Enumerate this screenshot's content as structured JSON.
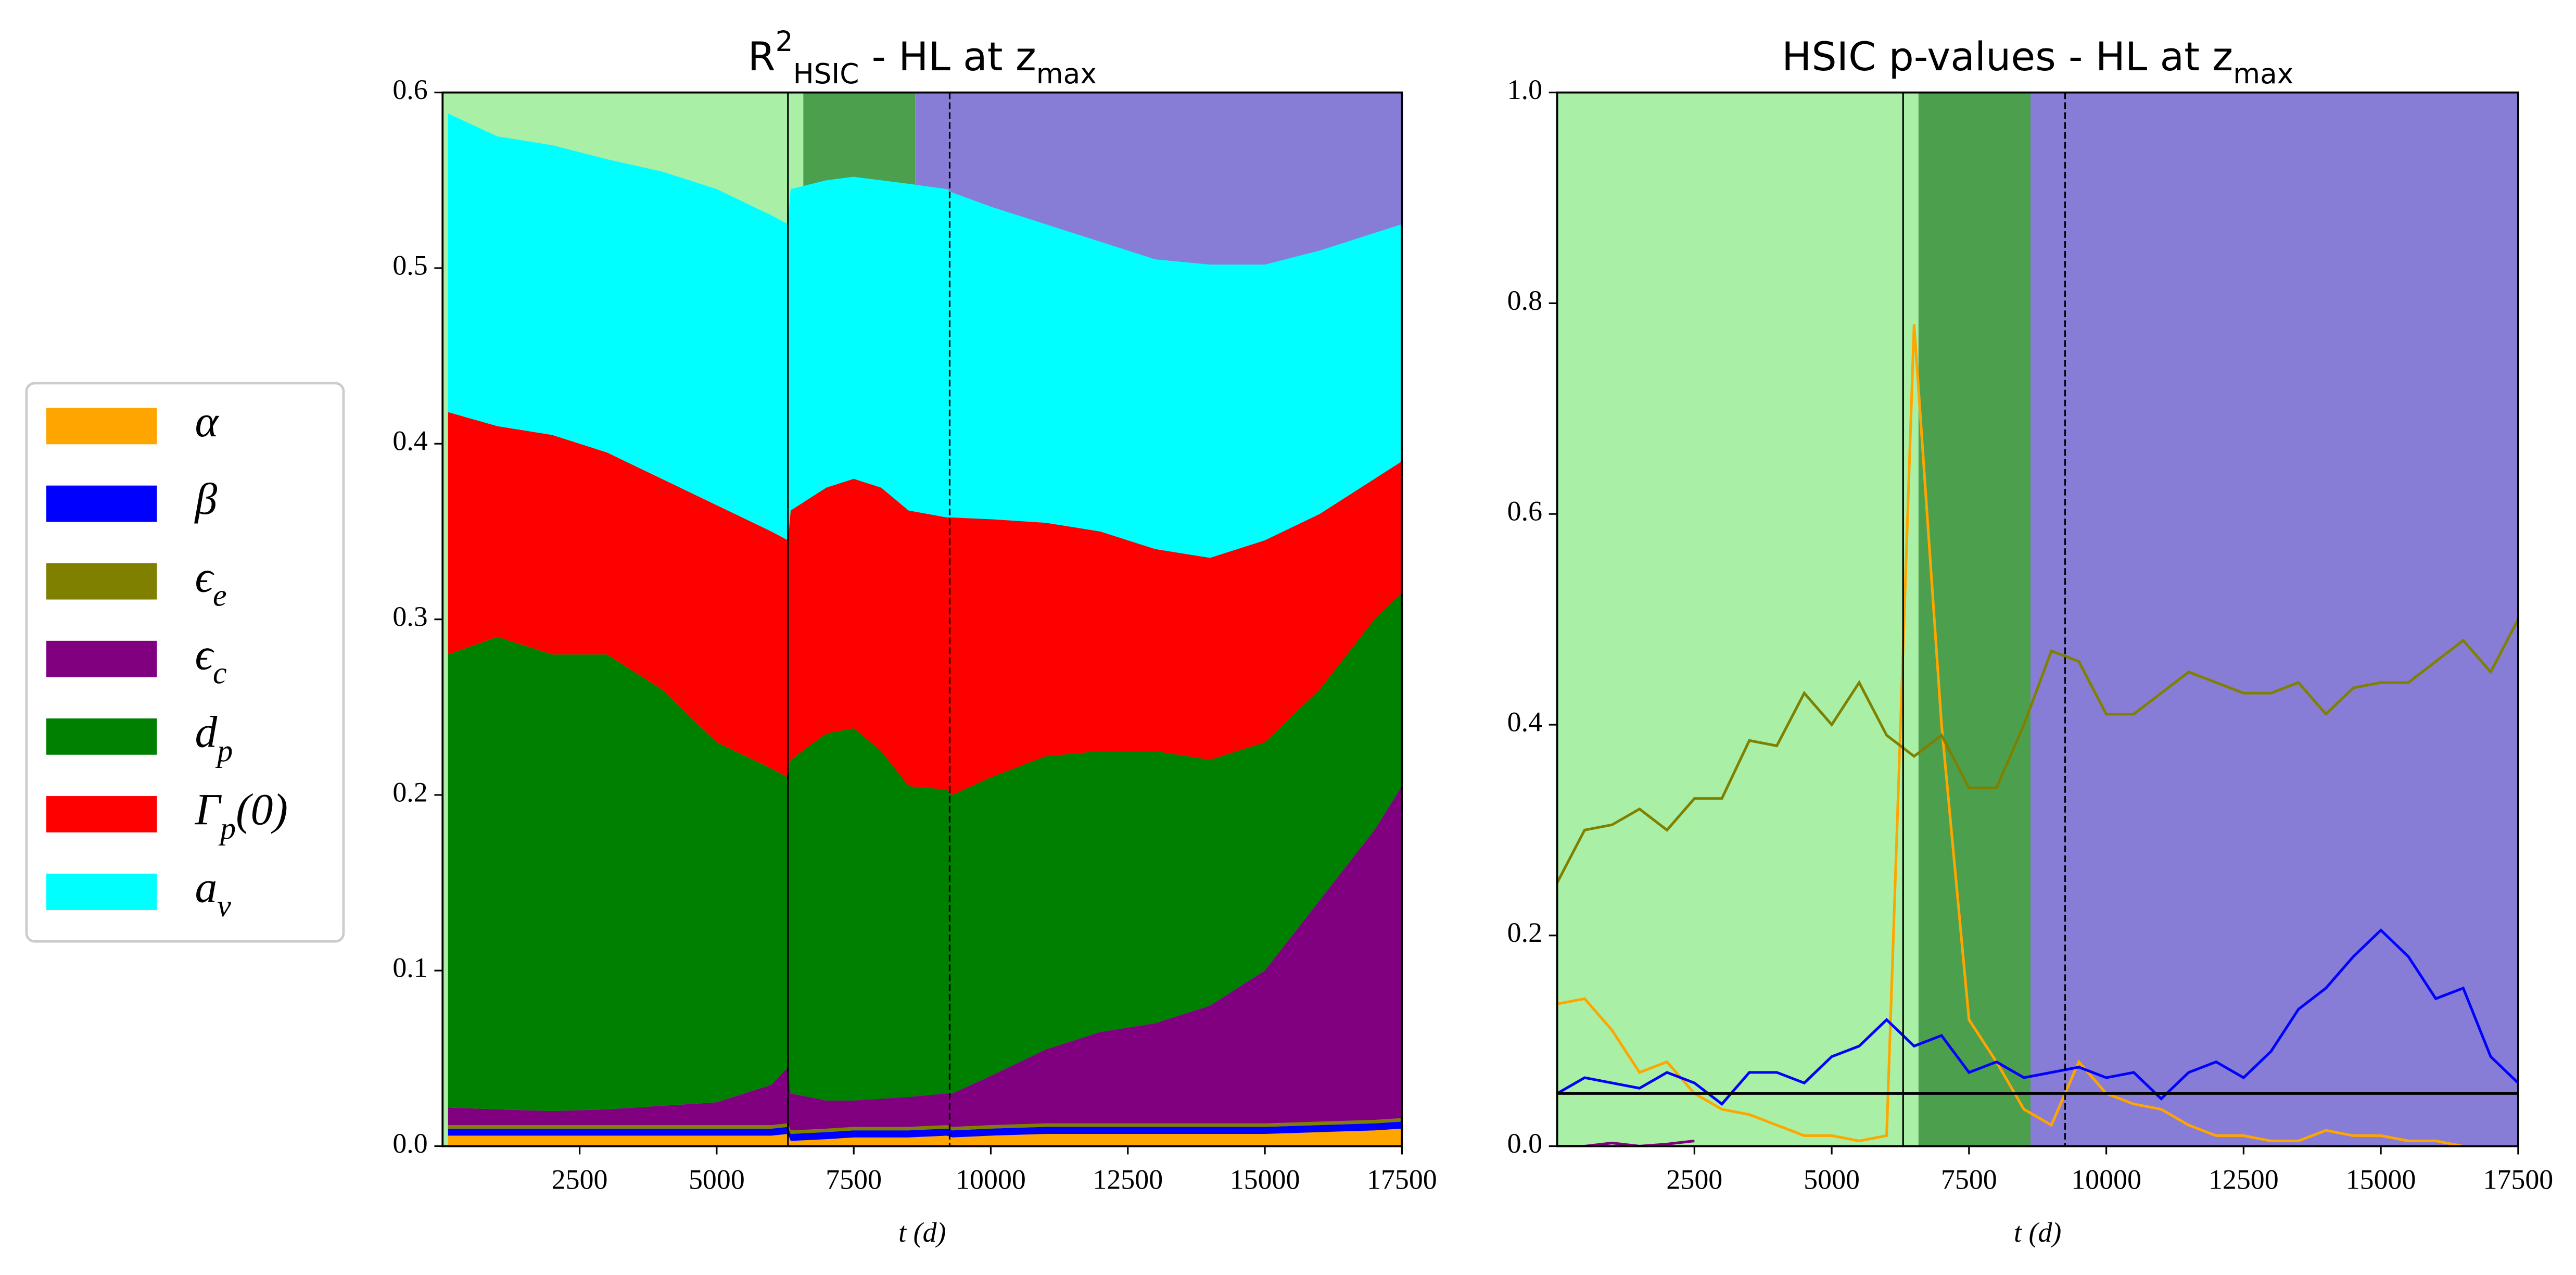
{
  "chart_data": [
    {
      "type": "stacked_area",
      "title": "R^2_{HSIC} - HL at z_{max}",
      "xlabel": "t (d)",
      "x": [
        100,
        1000,
        2000,
        3000,
        4000,
        5000,
        6000,
        6300,
        6350,
        7000,
        7500,
        8000,
        8500,
        9200,
        9300,
        10000,
        11000,
        12000,
        13000,
        14000,
        15000,
        16000,
        17000,
        17500
      ],
      "series": [
        {
          "name": "α",
          "color": "#ffa500",
          "values": [
            0.006,
            0.006,
            0.006,
            0.006,
            0.006,
            0.006,
            0.006,
            0.007,
            0.003,
            0.004,
            0.005,
            0.005,
            0.005,
            0.006,
            0.005,
            0.006,
            0.007,
            0.007,
            0.007,
            0.007,
            0.007,
            0.008,
            0.009,
            0.01
          ]
        },
        {
          "name": "β",
          "color": "#0000ff",
          "values": [
            0.004,
            0.004,
            0.004,
            0.004,
            0.004,
            0.004,
            0.004,
            0.004,
            0.004,
            0.004,
            0.004,
            0.004,
            0.004,
            0.004,
            0.004,
            0.004,
            0.004,
            0.004,
            0.004,
            0.004,
            0.004,
            0.004,
            0.004,
            0.004
          ]
        },
        {
          "name": "ϵ_e",
          "color": "#808000",
          "values": [
            0.002,
            0.002,
            0.002,
            0.002,
            0.002,
            0.002,
            0.002,
            0.002,
            0.002,
            0.002,
            0.002,
            0.002,
            0.002,
            0.002,
            0.002,
            0.002,
            0.002,
            0.002,
            0.002,
            0.002,
            0.002,
            0.002,
            0.002,
            0.002
          ]
        },
        {
          "name": "ϵ_c",
          "color": "#800080",
          "values": [
            0.01,
            0.009,
            0.008,
            0.009,
            0.011,
            0.013,
            0.023,
            0.032,
            0.021,
            0.016,
            0.015,
            0.016,
            0.017,
            0.018,
            0.019,
            0.028,
            0.042,
            0.052,
            0.057,
            0.067,
            0.087,
            0.126,
            0.165,
            0.189
          ]
        },
        {
          "name": "d_p",
          "color": "#008000",
          "values": [
            0.258,
            0.269,
            0.26,
            0.259,
            0.237,
            0.205,
            0.18,
            0.165,
            0.19,
            0.209,
            0.212,
            0.198,
            0.177,
            0.173,
            0.17,
            0.17,
            0.167,
            0.16,
            0.155,
            0.14,
            0.13,
            0.12,
            0.12,
            0.11
          ]
        },
        {
          "name": "Γ_p(0)",
          "color": "#ff0000",
          "values": [
            0.138,
            0.12,
            0.125,
            0.115,
            0.12,
            0.135,
            0.135,
            0.135,
            0.142,
            0.14,
            0.142,
            0.15,
            0.157,
            0.155,
            0.158,
            0.147,
            0.133,
            0.125,
            0.115,
            0.115,
            0.115,
            0.1,
            0.08,
            0.075
          ]
        },
        {
          "name": "a_v",
          "color": "#00ffff",
          "values": [
            0.17,
            0.165,
            0.165,
            0.167,
            0.175,
            0.18,
            0.18,
            0.18,
            0.183,
            0.175,
            0.172,
            0.175,
            0.186,
            0.187,
            0.185,
            0.178,
            0.17,
            0.165,
            0.165,
            0.167,
            0.157,
            0.15,
            0.14,
            0.135
          ]
        }
      ],
      "xlim": [
        0,
        17500
      ],
      "ylim": [
        0,
        0.6
      ],
      "xticks": [
        2500,
        5000,
        7500,
        10000,
        12500,
        15000,
        17500
      ],
      "yticks": [
        {
          "value": 0,
          "label": "0.0"
        },
        0.1,
        0.2,
        0.3,
        0.4,
        0.5,
        0.6
      ],
      "bands": [
        {
          "start": 0,
          "end": 6580,
          "color": "#a9f0a6"
        },
        {
          "start": 6580,
          "end": 8620,
          "color": "#4c9f4c"
        },
        {
          "start": 8620,
          "end": 17500,
          "color": "#877dd6"
        }
      ],
      "vlines": [
        {
          "x": 6300,
          "style": "solid"
        },
        {
          "x": 9250,
          "style": "dashed"
        }
      ],
      "legend": "left"
    },
    {
      "type": "line",
      "title": "HSIC p-values - HL at z_{max}",
      "xlabel": "t (d)",
      "x": [
        0,
        500,
        1000,
        1500,
        2000,
        2500,
        3000,
        3500,
        4000,
        4500,
        5000,
        5500,
        6000,
        6500,
        7000,
        7500,
        8000,
        8500,
        9000,
        9500,
        10000,
        10500,
        11000,
        11500,
        12000,
        12500,
        13000,
        13500,
        14000,
        14500,
        15000,
        15500,
        16000,
        16500,
        17000,
        17500
      ],
      "series": [
        {
          "color": "#ffa500",
          "values": [
            0.135,
            0.14,
            0.11,
            0.07,
            0.08,
            0.05,
            0.035,
            0.03,
            0.02,
            0.01,
            0.01,
            0.005,
            0.01,
            0.78,
            0.4,
            0.12,
            0.08,
            0.035,
            0.02,
            0.08,
            0.05,
            0.04,
            0.035,
            0.02,
            0.01,
            0.01,
            0.005,
            0.005,
            0.015,
            0.01,
            0.01,
            0.005,
            0.005,
            0,
            0,
            0
          ]
        },
        {
          "color": "#0000ff",
          "values": [
            0.05,
            0.065,
            0.06,
            0.055,
            0.07,
            0.06,
            0.04,
            0.07,
            0.07,
            0.06,
            0.085,
            0.095,
            0.12,
            0.095,
            0.105,
            0.07,
            0.08,
            0.065,
            0.07,
            0.075,
            0.065,
            0.07,
            0.045,
            0.07,
            0.08,
            0.065,
            0.09,
            0.13,
            0.15,
            0.18,
            0.205,
            0.18,
            0.14,
            0.15,
            0.085,
            0.06
          ]
        },
        {
          "color": "#808000",
          "values": [
            0.25,
            0.3,
            0.305,
            0.32,
            0.3,
            0.33,
            0.33,
            0.385,
            0.38,
            0.43,
            0.4,
            0.44,
            0.39,
            0.37,
            0.39,
            0.34,
            0.34,
            0.4,
            0.47,
            0.46,
            0.41,
            0.41,
            0.43,
            0.45,
            0.44,
            0.43,
            0.43,
            0.44,
            0.41,
            0.435,
            0.44,
            0.44,
            0.46,
            0.48,
            0.45,
            0.5
          ]
        },
        {
          "color": "#800080",
          "values": [
            0,
            0,
            0.003,
            0,
            0.002,
            0.005,
            null,
            null,
            null,
            null,
            null,
            null,
            null,
            null,
            null,
            null,
            null,
            null,
            null,
            null,
            null,
            null,
            null,
            null,
            null,
            null,
            null,
            null,
            null,
            null,
            null,
            null,
            null,
            null,
            null,
            null
          ]
        }
      ],
      "xlim": [
        0,
        17500
      ],
      "ylim": [
        0,
        1
      ],
      "xticks": [
        2500,
        5000,
        7500,
        10000,
        12500,
        15000,
        17500
      ],
      "yticks": [
        {
          "value": 0,
          "label": "0.0"
        },
        0.2,
        0.4,
        0.6,
        0.8,
        {
          "value": 1,
          "label": "1.0"
        }
      ],
      "bands": [
        {
          "start": 0,
          "end": 6580,
          "color": "#a9f0a6"
        },
        {
          "start": 6580,
          "end": 8620,
          "color": "#4c9f4c"
        },
        {
          "start": 8620,
          "end": 17500,
          "color": "#877dd6"
        }
      ],
      "vlines": [
        {
          "x": 6300,
          "style": "solid"
        },
        {
          "x": 9250,
          "style": "dashed"
        }
      ],
      "hline": 0.05
    }
  ]
}
